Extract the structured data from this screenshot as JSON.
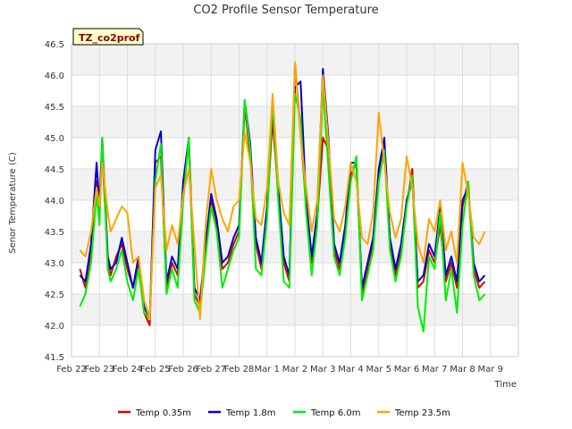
{
  "chart_data": {
    "type": "line",
    "title": "CO2 Profile Sensor Temperature",
    "xlabel": "Time",
    "ylabel": "Senor Temperature (C)",
    "annotation": "TZ_co2prof",
    "ylim": [
      41.5,
      46.5
    ],
    "yticks": [
      41.5,
      42.0,
      42.5,
      43.0,
      43.5,
      44.0,
      44.5,
      45.0,
      45.5,
      46.0,
      46.5
    ],
    "xlim": [
      0,
      16
    ],
    "xtick_labels": [
      "Feb 22",
      "Feb 23",
      "Feb 24",
      "Feb 25",
      "Feb 26",
      "Feb 27",
      "Feb 28",
      "Mar 1",
      "Mar 2",
      "Mar 3",
      "Mar 4",
      "Mar 5",
      "Mar 6",
      "Mar 7",
      "Mar 8",
      "Mar 9"
    ],
    "legend_position": "bottom-center",
    "series": [
      {
        "name": "Temp 0.35m",
        "color": "#dd0000",
        "x": [
          0.3,
          0.5,
          0.7,
          0.9,
          1.0,
          1.1,
          1.3,
          1.4,
          1.6,
          1.8,
          2.0,
          2.2,
          2.4,
          2.6,
          2.8,
          3.0,
          3.2,
          3.4,
          3.6,
          3.8,
          4.0,
          4.2,
          4.4,
          4.6,
          4.8,
          5.0,
          5.2,
          5.4,
          5.6,
          5.8,
          6.0,
          6.2,
          6.4,
          6.6,
          6.8,
          7.0,
          7.2,
          7.4,
          7.6,
          7.8,
          8.0,
          8.2,
          8.4,
          8.6,
          8.8,
          9.0,
          9.2,
          9.4,
          9.6,
          9.8,
          10.0,
          10.2,
          10.4,
          10.6,
          10.8,
          11.0,
          11.2,
          11.4,
          11.6,
          11.8,
          12.0,
          12.2,
          12.4,
          12.6,
          12.8,
          13.0,
          13.2,
          13.4,
          13.6,
          13.8,
          14.0,
          14.2,
          14.4,
          14.6,
          14.8
        ],
        "values": [
          42.9,
          42.6,
          43.2,
          44.3,
          43.8,
          44.8,
          43.0,
          42.8,
          43.1,
          43.3,
          42.9,
          42.6,
          43.0,
          42.2,
          42.0,
          44.6,
          44.7,
          42.6,
          43.0,
          42.8,
          44.2,
          44.9,
          42.5,
          42.3,
          43.2,
          44.0,
          43.6,
          42.9,
          43.0,
          43.3,
          43.5,
          45.5,
          44.7,
          43.3,
          42.9,
          43.8,
          45.3,
          44.1,
          43.0,
          42.7,
          46.2,
          45.1,
          43.9,
          43.0,
          43.7,
          45.0,
          44.8,
          43.2,
          42.9,
          43.5,
          44.4,
          44.6,
          42.5,
          42.9,
          43.3,
          44.4,
          44.9,
          43.3,
          42.8,
          43.2,
          43.9,
          44.5,
          42.6,
          42.7,
          43.2,
          43.0,
          43.6,
          42.7,
          43.0,
          42.6,
          43.9,
          44.3,
          42.9,
          42.6,
          42.7
        ]
      },
      {
        "name": "Temp 1.8m",
        "color": "#0000cc",
        "x": [
          0.3,
          0.5,
          0.7,
          0.9,
          1.0,
          1.1,
          1.3,
          1.4,
          1.6,
          1.8,
          2.0,
          2.2,
          2.4,
          2.6,
          2.8,
          3.0,
          3.2,
          3.4,
          3.6,
          3.8,
          4.0,
          4.2,
          4.4,
          4.6,
          4.8,
          5.0,
          5.2,
          5.4,
          5.6,
          5.8,
          6.0,
          6.2,
          6.4,
          6.6,
          6.8,
          7.0,
          7.2,
          7.4,
          7.6,
          7.8,
          8.0,
          8.2,
          8.4,
          8.6,
          8.8,
          9.0,
          9.2,
          9.4,
          9.6,
          9.8,
          10.0,
          10.2,
          10.4,
          10.6,
          10.8,
          11.0,
          11.2,
          11.4,
          11.6,
          11.8,
          12.0,
          12.2,
          12.4,
          12.6,
          12.8,
          13.0,
          13.2,
          13.4,
          13.6,
          13.8,
          14.0,
          14.2,
          14.4,
          14.6,
          14.8
        ],
        "values": [
          42.8,
          42.7,
          43.3,
          44.6,
          43.9,
          45.0,
          43.1,
          42.9,
          43.0,
          43.4,
          43.0,
          42.6,
          43.1,
          42.3,
          42.1,
          44.8,
          45.1,
          42.7,
          43.1,
          42.9,
          44.3,
          45.0,
          42.6,
          42.4,
          43.3,
          44.1,
          43.7,
          43.0,
          43.1,
          43.4,
          43.6,
          45.6,
          44.9,
          43.4,
          43.0,
          43.9,
          45.5,
          44.2,
          43.1,
          42.8,
          45.8,
          45.9,
          44.0,
          43.1,
          43.8,
          46.1,
          45.0,
          43.3,
          43.0,
          43.6,
          44.6,
          44.6,
          42.6,
          43.0,
          43.4,
          44.5,
          45.0,
          43.4,
          42.9,
          43.3,
          44.0,
          44.3,
          42.7,
          42.8,
          43.3,
          43.1,
          43.9,
          42.8,
          43.1,
          42.7,
          44.0,
          44.2,
          43.0,
          42.7,
          42.8
        ]
      },
      {
        "name": "Temp 6.0m",
        "color": "#00ee00",
        "x": [
          0.3,
          0.5,
          0.7,
          0.9,
          1.0,
          1.1,
          1.3,
          1.4,
          1.6,
          1.8,
          2.0,
          2.2,
          2.4,
          2.6,
          2.8,
          3.0,
          3.2,
          3.4,
          3.6,
          3.8,
          4.0,
          4.2,
          4.4,
          4.6,
          4.8,
          5.0,
          5.2,
          5.4,
          5.6,
          5.8,
          6.0,
          6.2,
          6.4,
          6.6,
          6.8,
          7.0,
          7.2,
          7.4,
          7.6,
          7.8,
          8.0,
          8.2,
          8.4,
          8.6,
          8.8,
          9.0,
          9.2,
          9.4,
          9.6,
          9.8,
          10.0,
          10.2,
          10.4,
          10.6,
          10.8,
          11.0,
          11.2,
          11.4,
          11.6,
          11.8,
          12.0,
          12.2,
          12.4,
          12.6,
          12.8,
          13.0,
          13.2,
          13.4,
          13.6,
          13.8,
          14.0,
          14.2,
          14.4,
          14.6,
          14.8
        ],
        "values": [
          42.3,
          42.5,
          43.0,
          44.1,
          43.6,
          45.0,
          42.9,
          42.7,
          42.9,
          43.2,
          42.7,
          42.4,
          42.9,
          42.2,
          42.1,
          44.3,
          44.9,
          42.5,
          42.9,
          42.6,
          44.0,
          45.0,
          42.4,
          42.2,
          43.1,
          43.9,
          43.5,
          42.6,
          42.9,
          43.2,
          43.4,
          45.6,
          44.8,
          42.9,
          42.8,
          43.7,
          45.6,
          44.0,
          42.7,
          42.6,
          45.7,
          45.3,
          43.8,
          42.8,
          43.6,
          45.8,
          44.5,
          43.1,
          42.8,
          43.4,
          44.3,
          44.7,
          42.4,
          42.8,
          43.2,
          44.3,
          44.8,
          43.2,
          42.7,
          43.1,
          43.9,
          44.4,
          42.3,
          41.9,
          43.1,
          42.9,
          43.8,
          42.4,
          42.9,
          42.2,
          43.6,
          44.3,
          42.8,
          42.4,
          42.5
        ]
      },
      {
        "name": "Temp 23.5m",
        "color": "#ffa500",
        "x": [
          0.3,
          0.5,
          0.7,
          0.9,
          1.0,
          1.1,
          1.3,
          1.4,
          1.6,
          1.8,
          2.0,
          2.2,
          2.4,
          2.6,
          2.8,
          3.0,
          3.2,
          3.4,
          3.6,
          3.8,
          4.0,
          4.2,
          4.4,
          4.6,
          4.8,
          5.0,
          5.2,
          5.4,
          5.6,
          5.8,
          6.0,
          6.2,
          6.4,
          6.6,
          6.8,
          7.0,
          7.2,
          7.4,
          7.6,
          7.8,
          8.0,
          8.2,
          8.4,
          8.6,
          8.8,
          9.0,
          9.2,
          9.4,
          9.6,
          9.8,
          10.0,
          10.2,
          10.4,
          10.6,
          10.8,
          11.0,
          11.2,
          11.4,
          11.6,
          11.8,
          12.0,
          12.2,
          12.4,
          12.6,
          12.8,
          13.0,
          13.2,
          13.4,
          13.6,
          13.8,
          14.0,
          14.2,
          14.4,
          14.6,
          14.8
        ],
        "values": [
          43.2,
          43.1,
          43.5,
          44.2,
          43.9,
          44.6,
          43.8,
          43.5,
          43.7,
          43.9,
          43.8,
          43.0,
          43.1,
          42.4,
          42.1,
          44.2,
          44.4,
          43.2,
          43.6,
          43.3,
          44.1,
          44.5,
          43.3,
          42.1,
          43.6,
          44.5,
          44.0,
          43.7,
          43.5,
          43.9,
          44.0,
          45.1,
          44.6,
          43.7,
          43.6,
          44.2,
          45.7,
          44.3,
          43.8,
          43.6,
          46.2,
          45.0,
          44.2,
          43.5,
          44.0,
          46.0,
          44.9,
          43.7,
          43.5,
          43.9,
          44.6,
          44.3,
          43.4,
          43.3,
          43.8,
          45.4,
          44.6,
          43.8,
          43.4,
          43.7,
          44.7,
          44.2,
          43.3,
          43.0,
          43.7,
          43.5,
          44.0,
          43.2,
          43.5,
          43.0,
          44.6,
          44.1,
          43.4,
          43.3,
          43.5
        ]
      }
    ]
  }
}
